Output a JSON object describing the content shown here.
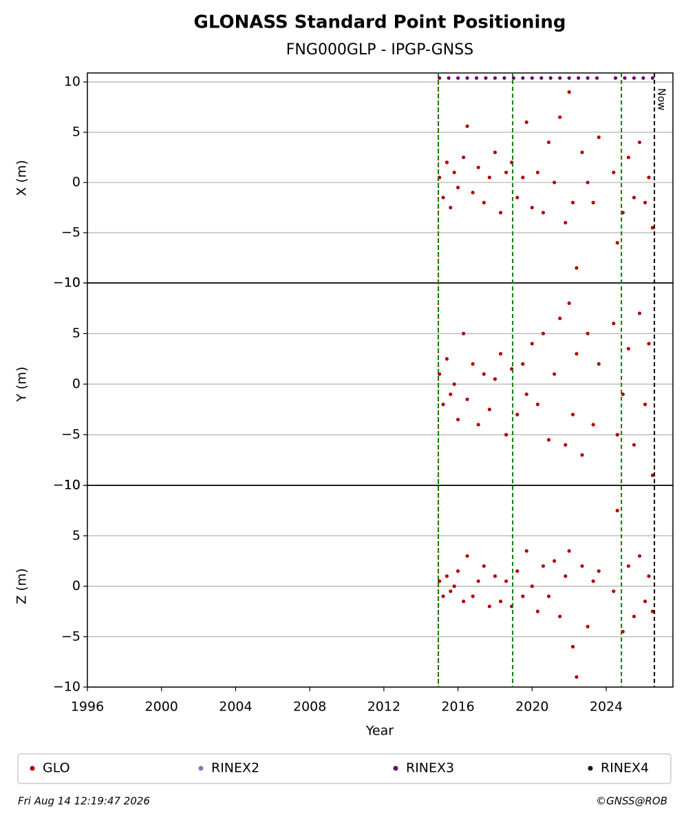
{
  "title": "GLONASS Standard Point Positioning",
  "subtitle": "FNG000GLP - IPGP-GNSS",
  "xlabel": "Year",
  "xlim": [
    1996,
    2027.6
  ],
  "xticks": [
    1996,
    2000,
    2004,
    2008,
    2012,
    2016,
    2020,
    2024
  ],
  "vlines": [
    {
      "x": 2014.94,
      "color": "#cc0000",
      "style": "dotted"
    },
    {
      "x": 2014.94,
      "color": "#008000",
      "style": "dashed"
    },
    {
      "x": 2018.95,
      "color": "#008000",
      "style": "dashed"
    },
    {
      "x": 2024.82,
      "color": "#008000",
      "style": "dashed"
    },
    {
      "x": 2026.6,
      "color": "#000000",
      "style": "dashed",
      "label": "Now"
    }
  ],
  "chart_data": [
    {
      "type": "scatter",
      "ylabel": "X (m)",
      "ylim": [
        -10,
        10.9
      ],
      "grid": true,
      "yticks": [
        {
          "value": -10,
          "label": "−10"
        },
        {
          "value": -5,
          "label": "−5"
        },
        0,
        5,
        10
      ],
      "series": [
        {
          "name": "GLO",
          "color": "#b30000",
          "x": [
            2015.0,
            2015.2,
            2015.4,
            2015.6,
            2015.8,
            2016.0,
            2016.3,
            2016.5,
            2016.8,
            2017.1,
            2017.4,
            2017.7,
            2018.0,
            2018.3,
            2018.6,
            2018.9,
            2019.2,
            2019.5,
            2019.7,
            2020.0,
            2020.3,
            2020.6,
            2020.9,
            2021.2,
            2021.5,
            2021.8,
            2022.0,
            2022.2,
            2022.4,
            2022.7,
            2023.0,
            2023.3,
            2023.6,
            2024.4,
            2024.6,
            2024.9,
            2025.2,
            2025.5,
            2025.8,
            2026.1,
            2026.3,
            2026.5
          ],
          "values": [
            0.5,
            -1.5,
            2,
            -2.5,
            1,
            -0.5,
            2.5,
            5.6,
            -1,
            1.5,
            -2,
            0.5,
            3,
            -3,
            1,
            2,
            -1.5,
            0.5,
            6,
            -2.5,
            1,
            -3,
            4,
            0,
            6.5,
            -4,
            9,
            -2,
            -8.5,
            3,
            0,
            -2,
            4.5,
            1,
            -6,
            -3,
            2.5,
            -1.5,
            4,
            -2,
            0.5,
            -4.5
          ]
        },
        {
          "name": "RINEX2",
          "color": "#7b7bc0",
          "x": [],
          "values": []
        },
        {
          "name": "RINEX3",
          "color": "#6a006a",
          "x": [
            2015.0,
            2015.5,
            2016.0,
            2016.5,
            2017.0,
            2017.5,
            2018.0,
            2018.5,
            2019.0,
            2019.5,
            2020.0,
            2020.5,
            2021.0,
            2021.5,
            2022.0,
            2022.5,
            2023.0,
            2023.5,
            2024.5,
            2025.0,
            2025.5,
            2026.0,
            2026.5
          ],
          "values": [
            10.4,
            10.4,
            10.4,
            10.4,
            10.4,
            10.4,
            10.4,
            10.4,
            10.4,
            10.4,
            10.4,
            10.4,
            10.4,
            10.4,
            10.4,
            10.4,
            10.4,
            10.4,
            10.4,
            10.4,
            10.4,
            10.4,
            10.4
          ]
        },
        {
          "name": "RINEX4",
          "color": "#2a0022",
          "x": [],
          "values": []
        }
      ]
    },
    {
      "type": "scatter",
      "ylabel": "Y (m)",
      "ylim": [
        -10,
        10
      ],
      "grid": true,
      "yticks": [
        {
          "value": -10,
          "label": "−10"
        },
        {
          "value": -5,
          "label": "−5"
        },
        0,
        5,
        10
      ],
      "series": [
        {
          "name": "GLO",
          "color": "#b30000",
          "x": [
            2015.0,
            2015.2,
            2015.4,
            2015.6,
            2015.8,
            2016.0,
            2016.3,
            2016.5,
            2016.8,
            2017.1,
            2017.4,
            2017.7,
            2018.0,
            2018.3,
            2018.6,
            2018.9,
            2019.2,
            2019.5,
            2019.7,
            2020.0,
            2020.3,
            2020.6,
            2020.9,
            2021.2,
            2021.5,
            2021.8,
            2022.0,
            2022.2,
            2022.4,
            2022.7,
            2023.0,
            2023.3,
            2023.6,
            2024.4,
            2024.6,
            2024.9,
            2025.2,
            2025.5,
            2025.8,
            2026.1,
            2026.3,
            2026.5
          ],
          "values": [
            1,
            -2,
            2.5,
            -1,
            0,
            -3.5,
            5,
            -1.5,
            2,
            -4,
            1,
            -2.5,
            0.5,
            3,
            -5,
            1.5,
            -3,
            2,
            -1,
            4,
            -2,
            5,
            -5.5,
            1,
            6.5,
            -6,
            8,
            -3,
            3,
            -7,
            5,
            -4,
            2,
            6,
            -5,
            -1,
            3.5,
            -6,
            7,
            -2,
            4,
            -9
          ]
        }
      ]
    },
    {
      "type": "scatter",
      "ylabel": "Z (m)",
      "ylim": [
        -10,
        10
      ],
      "grid": true,
      "yticks": [
        {
          "value": -10,
          "label": "−10"
        },
        {
          "value": -5,
          "label": "−5"
        },
        0,
        5,
        10
      ],
      "series": [
        {
          "name": "GLO",
          "color": "#b30000",
          "x": [
            2015.0,
            2015.2,
            2015.4,
            2015.6,
            2015.8,
            2016.0,
            2016.3,
            2016.5,
            2016.8,
            2017.1,
            2017.4,
            2017.7,
            2018.0,
            2018.3,
            2018.6,
            2018.9,
            2019.2,
            2019.5,
            2019.7,
            2020.0,
            2020.3,
            2020.6,
            2020.9,
            2021.2,
            2021.5,
            2021.8,
            2022.0,
            2022.2,
            2022.4,
            2022.7,
            2023.0,
            2023.3,
            2023.6,
            2024.4,
            2024.6,
            2024.9,
            2025.2,
            2025.5,
            2025.8,
            2026.1,
            2026.3,
            2026.5
          ],
          "values": [
            0.5,
            -1,
            1,
            -0.5,
            0,
            1.5,
            -1.5,
            3,
            -1,
            0.5,
            2,
            -2,
            1,
            -1.5,
            0.5,
            -2,
            1.5,
            -1,
            3.5,
            0,
            -2.5,
            2,
            -1,
            2.5,
            -3,
            1,
            3.5,
            -6,
            -9,
            2,
            -4,
            0.5,
            1.5,
            -0.5,
            7.5,
            -4.5,
            2,
            -3,
            3,
            -1.5,
            1,
            -2.5
          ]
        }
      ]
    }
  ],
  "footer": {
    "left": "Fri Aug 14 12:19:47 2026",
    "right": "©GNSS@ROB"
  }
}
